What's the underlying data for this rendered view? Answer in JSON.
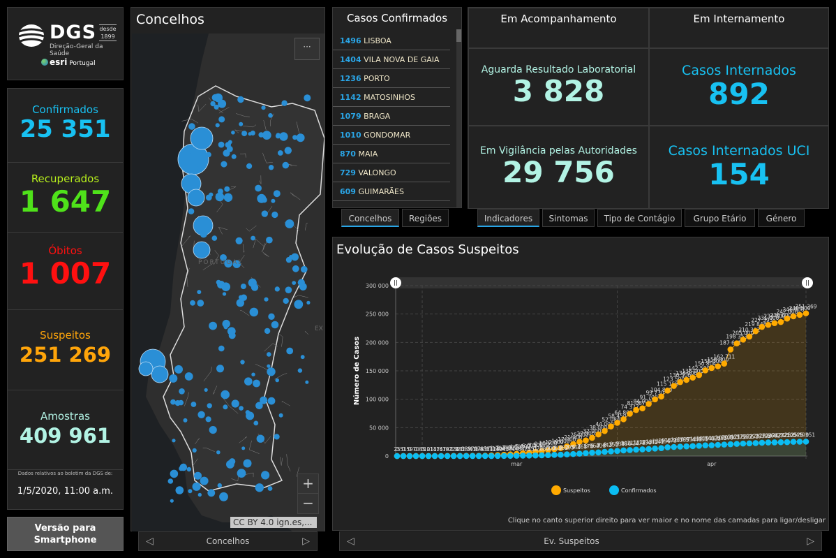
{
  "logo": {
    "brand": "DGS",
    "since_label": "desde",
    "since_year": "1899",
    "subtitle": "Direção-Geral da Saúde",
    "partner": "esri",
    "partner_region": "Portugal"
  },
  "stats": [
    {
      "label": "Confirmados",
      "value": "25 351",
      "color": "#18c1f2"
    },
    {
      "label": "Recuperados",
      "value": "1 647",
      "color": "#4fe21a",
      "label_color": "#b8f01c"
    },
    {
      "label": "Óbitos",
      "value": "1 007",
      "color": "#ff1010"
    },
    {
      "label": "Suspeitos",
      "value": "251 269",
      "color": "#ffa50a"
    },
    {
      "label": "Amostras",
      "value": "409 961",
      "color": "#b2f3e4"
    }
  ],
  "bulletin": {
    "note": "Dados relativos ao boletim da DGS de:",
    "date": "1/5/2020, 11:00 a.m."
  },
  "smartphone_button": "Versão para Smartphone",
  "map": {
    "title": "Concelhos",
    "more_label": "···",
    "zoom_in": "+",
    "zoom_out": "−",
    "attribution": "CC BY 4.0 ign.es,...",
    "country_label": "PORTUGAL",
    "nav_label": "Concelhos"
  },
  "cases_list": {
    "title": "Casos Confirmados",
    "rows": [
      {
        "count": "1496",
        "name": "LISBOA"
      },
      {
        "count": "1404",
        "name": "VILA NOVA DE GAIA"
      },
      {
        "count": "1236",
        "name": "PORTO"
      },
      {
        "count": "1142",
        "name": "MATOSINHOS"
      },
      {
        "count": "1079",
        "name": "BRAGA"
      },
      {
        "count": "1010",
        "name": "GONDOMAR"
      },
      {
        "count": "870",
        "name": "MAIA"
      },
      {
        "count": "729",
        "name": "VALONGO"
      },
      {
        "count": "609",
        "name": "GUIMARÃES"
      }
    ],
    "tabs": [
      "Concelhos",
      "Regiões"
    ],
    "active_tab": 0
  },
  "indicators": {
    "acompanhamento": {
      "header": "Em Acompanhamento",
      "items": [
        {
          "label": "Aguarda Resultado Laboratorial",
          "value": "3 828",
          "color": "#b2f3e4"
        },
        {
          "label": "Em Vigilância pelas Autoridades",
          "value": "29 756",
          "color": "#b2f3e4"
        }
      ]
    },
    "internamento": {
      "header": "Em Internamento",
      "items": [
        {
          "label": "Casos Internados",
          "value": "892",
          "color": "#18c1f2"
        },
        {
          "label": "Casos Internados UCI",
          "value": "154",
          "color": "#18c1f2"
        }
      ]
    },
    "tabs": [
      "Indicadores",
      "Sintomas",
      "Tipo de Contágio",
      "Grupo Etário",
      "Género"
    ],
    "active_tab": 0
  },
  "chart_panel": {
    "hint": "Clique no canto superior direito para ver maior e no nome das camadas para ligar/desligar",
    "nav_label": "Ev. Suspeitos"
  },
  "chart_data": {
    "type": "line",
    "title": "Evolução de Casos Suspeitos",
    "xlabel": "",
    "ylabel": "Número de Casos",
    "ylim": [
      0,
      300000
    ],
    "yticks": [
      0,
      50000,
      100000,
      150000,
      200000,
      250000,
      300000
    ],
    "ytick_labels": [
      "0",
      "50 000",
      "100 000",
      "150 000",
      "200 000",
      "250 000",
      "300 000"
    ],
    "x_start": "2020-02-26",
    "x_end": "2020-05-01",
    "xtick_labels": [
      "mar",
      "apr"
    ],
    "grid": true,
    "legend": "bottom",
    "series": [
      {
        "name": "Suspeitos",
        "color": "#ffaa00",
        "values": [
          25,
          51,
          59,
          70,
          85,
          101,
          117,
          147,
          181,
          224,
          281,
          339,
          375,
          471,
          637,
          1113,
          1704,
          2271,
          3000,
          4000,
          5000,
          6000,
          7500,
          9000,
          10500,
          12000,
          14000,
          17000,
          21000,
          25000,
          27500,
          32000,
          38000,
          44000,
          52084,
          58450,
          64800,
          74377,
          81087,
          84000,
          91700,
          99730,
          104800,
          115158,
          123500,
          130300,
          134000,
          138000,
          142500,
          150804,
          155000,
          158000,
          162711,
          187601,
          198353,
          205000,
          210302,
          219848,
          227393,
          231000,
          234000,
          236000,
          242000,
          246000,
          248500,
          251269
        ]
      },
      {
        "name": "Confirmados",
        "color": "#0bbdf3",
        "values": [
          0,
          0,
          0,
          0,
          0,
          2,
          4,
          6,
          9,
          13,
          21,
          30,
          41,
          59,
          78,
          112,
          169,
          245,
          331,
          448,
          642,
          785,
          1020,
          1280,
          1600,
          2060,
          2362,
          2995,
          3544,
          4268,
          5170,
          5962,
          6408,
          7443,
          8251,
          9034,
          9886,
          10524,
          11278,
          11730,
          12442,
          13141,
          13956,
          15472,
          15987,
          16585,
          16934,
          17448,
          18091,
          18841,
          19022,
          19685,
          20206,
          20863,
          21379,
          21982,
          22353,
          22797,
          23392,
          23864,
          24027,
          24322,
          24505,
          25045,
          25190,
          25351
        ]
      }
    ]
  }
}
